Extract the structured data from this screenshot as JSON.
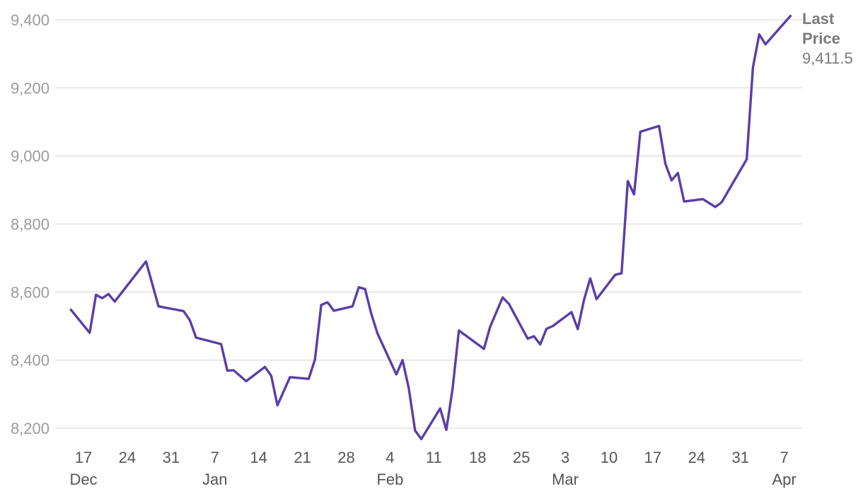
{
  "chart_data": {
    "type": "line",
    "title": "",
    "xlabel": "",
    "ylabel": "",
    "ylim": [
      8200,
      9400
    ],
    "y_ticks": [
      8200,
      8400,
      8600,
      8800,
      9000,
      9200,
      9400
    ],
    "grid": true,
    "color": "#5a3ea7",
    "x_ticks": [
      {
        "date": "2019-12-17",
        "label": "17",
        "month": "Dec"
      },
      {
        "date": "2019-12-24",
        "label": "24",
        "month": ""
      },
      {
        "date": "2019-12-31",
        "label": "31",
        "month": ""
      },
      {
        "date": "2020-01-07",
        "label": "7",
        "month": "Jan"
      },
      {
        "date": "2020-01-14",
        "label": "14",
        "month": ""
      },
      {
        "date": "2020-01-21",
        "label": "21",
        "month": ""
      },
      {
        "date": "2020-01-28",
        "label": "28",
        "month": ""
      },
      {
        "date": "2020-02-04",
        "label": "4",
        "month": "Feb"
      },
      {
        "date": "2020-02-11",
        "label": "11",
        "month": ""
      },
      {
        "date": "2020-02-18",
        "label": "18",
        "month": ""
      },
      {
        "date": "2020-02-25",
        "label": "25",
        "month": ""
      },
      {
        "date": "2020-03-03",
        "label": "3",
        "month": "Mar"
      },
      {
        "date": "2020-03-10",
        "label": "10",
        "month": ""
      },
      {
        "date": "2020-03-17",
        "label": "17",
        "month": ""
      },
      {
        "date": "2020-03-24",
        "label": "24",
        "month": ""
      },
      {
        "date": "2020-03-31",
        "label": "31",
        "month": ""
      },
      {
        "date": "2020-04-07",
        "label": "7",
        "month": "Apr"
      }
    ],
    "last_price": {
      "label_line1": "Last",
      "label_line2": "Price",
      "value_text": "9,411.5",
      "value": 9411.5
    },
    "series": [
      {
        "x": [
          "2019-12-15",
          "2019-12-18",
          "2019-12-19",
          "2019-12-20",
          "2019-12-21",
          "2019-12-22",
          "2019-12-27",
          "2019-12-29",
          "2020-01-02",
          "2020-01-03",
          "2020-01-04",
          "2020-01-08",
          "2020-01-09",
          "2020-01-10",
          "2020-01-12",
          "2020-01-15",
          "2020-01-16",
          "2020-01-17",
          "2020-01-19",
          "2020-01-22",
          "2020-01-23",
          "2020-01-24",
          "2020-01-25",
          "2020-01-26",
          "2020-01-29",
          "2020-01-30",
          "2020-01-31",
          "2020-02-01",
          "2020-02-02",
          "2020-02-05",
          "2020-02-06",
          "2020-02-07",
          "2020-02-08",
          "2020-02-09",
          "2020-02-12",
          "2020-02-13",
          "2020-02-14",
          "2020-02-15",
          "2020-02-19",
          "2020-02-20",
          "2020-02-22",
          "2020-02-23",
          "2020-02-26",
          "2020-02-27",
          "2020-02-28",
          "2020-02-29",
          "2020-03-01",
          "2020-03-04",
          "2020-03-05",
          "2020-03-06",
          "2020-03-07",
          "2020-03-08",
          "2020-03-11",
          "2020-03-12",
          "2020-03-13",
          "2020-03-14",
          "2020-03-15",
          "2020-03-18",
          "2020-03-19",
          "2020-03-20",
          "2020-03-21",
          "2020-03-22",
          "2020-03-25",
          "2020-03-27",
          "2020-03-28",
          "2020-04-01",
          "2020-04-02",
          "2020-04-03",
          "2020-04-04",
          "2020-04-08"
        ],
        "values": [
          8548,
          8480,
          8592,
          8582,
          8594,
          8572,
          8690,
          8558,
          8544,
          8517,
          8466,
          8447,
          8369,
          8370,
          8338,
          8380,
          8354,
          8267,
          8350,
          8345,
          8402,
          8562,
          8570,
          8545,
          8558,
          8614,
          8609,
          8536,
          8478,
          8358,
          8400,
          8317,
          8193,
          8168,
          8258,
          8195,
          8317,
          8487,
          8433,
          8498,
          8584,
          8565,
          8463,
          8470,
          8446,
          8492,
          8500,
          8541,
          8491,
          8577,
          8640,
          8579,
          8651,
          8655,
          8926,
          8887,
          9071,
          9088,
          8977,
          8928,
          8950,
          8866,
          8873,
          8850,
          8864,
          8990,
          9260,
          9357,
          9328,
          9411.5
        ]
      }
    ]
  }
}
